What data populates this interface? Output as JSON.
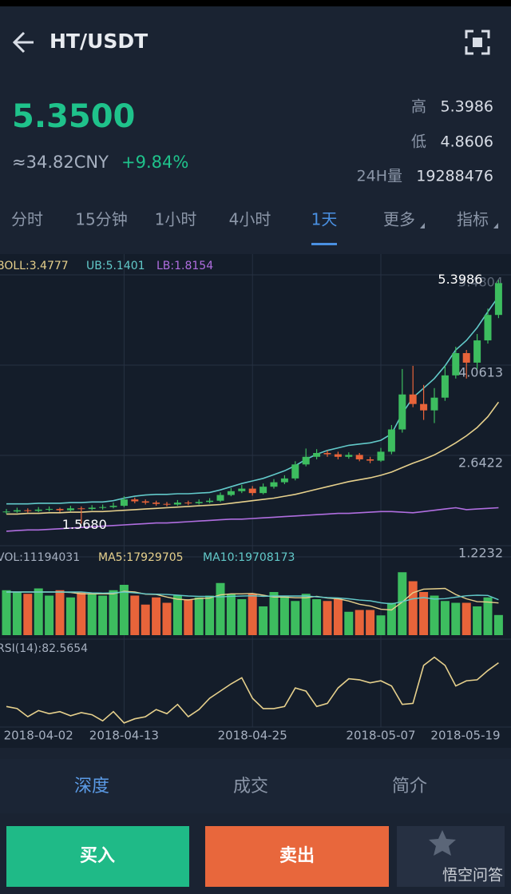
{
  "header": {
    "title": "HT/USDT",
    "price": "5.3500",
    "cny": "≈34.82CNY",
    "change": "+9.84%",
    "stats": [
      {
        "label": "高",
        "value": "5.3986"
      },
      {
        "label": "低",
        "value": "4.8606"
      },
      {
        "label": "24H量",
        "value": "19288476"
      }
    ]
  },
  "tabs": [
    "分时",
    "15分钟",
    "1小时",
    "4小时",
    "1天",
    "更多",
    "指标"
  ],
  "chart_data": {
    "type": "candlestick",
    "categories": [
      null,
      null,
      null,
      "2018-04-02",
      null,
      null,
      null,
      null,
      null,
      null,
      null,
      "2018-04-13",
      null,
      null,
      null,
      null,
      null,
      null,
      null,
      null,
      null,
      null,
      null,
      "2018-04-25",
      null,
      null,
      null,
      null,
      null,
      null,
      null,
      null,
      null,
      null,
      null,
      "2018-05-07",
      null,
      null,
      null,
      null,
      null,
      null,
      null,
      null,
      "2018-05-19",
      null,
      null
    ],
    "open": [
      1.75,
      1.76,
      1.78,
      1.77,
      1.79,
      1.8,
      1.78,
      1.81,
      1.8,
      1.82,
      1.83,
      1.85,
      1.95,
      1.92,
      1.9,
      1.88,
      1.87,
      1.9,
      1.89,
      1.91,
      1.93,
      2.02,
      2.08,
      2.12,
      2.05,
      2.15,
      2.22,
      2.28,
      2.5,
      2.62,
      2.68,
      2.66,
      2.62,
      2.65,
      2.58,
      2.56,
      2.7,
      3.05,
      3.6,
      3.45,
      3.35,
      3.55,
      3.9,
      4.25,
      4.1,
      4.45,
      4.85
    ],
    "high": [
      1.8,
      1.82,
      1.81,
      1.83,
      1.84,
      1.82,
      1.85,
      1.84,
      1.86,
      1.87,
      1.9,
      2.0,
      1.98,
      1.95,
      1.93,
      1.91,
      1.94,
      1.93,
      1.95,
      1.97,
      2.06,
      2.13,
      2.18,
      2.16,
      2.2,
      2.27,
      2.33,
      2.55,
      2.75,
      2.74,
      2.72,
      2.7,
      2.69,
      2.68,
      2.62,
      2.76,
      3.12,
      4.0,
      4.05,
      3.75,
      3.7,
      4.05,
      4.35,
      4.3,
      4.55,
      4.95,
      5.3986
    ],
    "low": [
      1.72,
      1.74,
      1.74,
      1.75,
      1.76,
      1.75,
      1.76,
      1.568,
      1.78,
      1.79,
      1.81,
      1.83,
      1.89,
      1.87,
      1.85,
      1.84,
      1.85,
      1.86,
      1.87,
      1.89,
      1.91,
      2.0,
      2.05,
      2.01,
      2.03,
      2.12,
      2.19,
      2.25,
      2.47,
      2.58,
      2.62,
      2.58,
      2.59,
      2.55,
      2.52,
      2.54,
      2.66,
      3.0,
      3.4,
      3.2,
      3.15,
      3.5,
      3.85,
      3.85,
      4.0,
      4.4,
      4.8
    ],
    "close": [
      1.76,
      1.78,
      1.77,
      1.79,
      1.8,
      1.78,
      1.81,
      1.8,
      1.82,
      1.83,
      1.85,
      1.95,
      1.92,
      1.9,
      1.88,
      1.87,
      1.9,
      1.89,
      1.91,
      1.93,
      2.02,
      2.08,
      2.12,
      2.05,
      2.15,
      2.22,
      2.28,
      2.5,
      2.62,
      2.68,
      2.66,
      2.62,
      2.65,
      2.58,
      2.56,
      2.7,
      3.05,
      3.6,
      3.45,
      3.35,
      3.55,
      3.9,
      4.25,
      4.1,
      4.45,
      4.85,
      5.35
    ],
    "up_color": "#3dbd5f",
    "down_color": "#e8643a",
    "ylim": [
      1.2232,
      5.4804
    ],
    "yticks": [
      1.2232,
      2.6422,
      4.0613,
      5.4804
    ],
    "grid": true,
    "high_label": "5.3986",
    "low_label": "1.5680",
    "boll": [
      {
        "name": "BOLL:3.4777",
        "color": "#e6d08c",
        "values": [
          1.72,
          1.72,
          1.73,
          1.73,
          1.74,
          1.74,
          1.75,
          1.75,
          1.76,
          1.76,
          1.77,
          1.78,
          1.79,
          1.8,
          1.81,
          1.82,
          1.83,
          1.84,
          1.85,
          1.86,
          1.87,
          1.89,
          1.91,
          1.93,
          1.95,
          1.97,
          2.0,
          2.03,
          2.07,
          2.11,
          2.15,
          2.19,
          2.23,
          2.26,
          2.29,
          2.33,
          2.38,
          2.45,
          2.52,
          2.58,
          2.65,
          2.74,
          2.84,
          2.95,
          3.08,
          3.25,
          3.48
        ]
      },
      {
        "name": "UB:5.1401",
        "color": "#62c9c9",
        "values": [
          1.88,
          1.88,
          1.88,
          1.89,
          1.89,
          1.89,
          1.9,
          1.9,
          1.91,
          1.91,
          1.93,
          1.97,
          2.0,
          2.02,
          2.03,
          2.03,
          2.04,
          2.04,
          2.05,
          2.06,
          2.1,
          2.15,
          2.2,
          2.24,
          2.28,
          2.34,
          2.4,
          2.48,
          2.58,
          2.66,
          2.72,
          2.76,
          2.8,
          2.82,
          2.84,
          2.88,
          2.98,
          3.3,
          3.55,
          3.7,
          3.85,
          4.05,
          4.3,
          4.45,
          4.65,
          4.9,
          5.14
        ]
      },
      {
        "name": "LB:1.8154",
        "color": "#b06ee0",
        "values": [
          1.45,
          1.46,
          1.47,
          1.47,
          1.48,
          1.49,
          1.5,
          1.51,
          1.52,
          1.53,
          1.54,
          1.55,
          1.56,
          1.57,
          1.58,
          1.58,
          1.59,
          1.6,
          1.61,
          1.62,
          1.63,
          1.64,
          1.64,
          1.65,
          1.66,
          1.67,
          1.68,
          1.69,
          1.7,
          1.71,
          1.72,
          1.73,
          1.73,
          1.74,
          1.75,
          1.76,
          1.76,
          1.75,
          1.74,
          1.76,
          1.78,
          1.8,
          1.82,
          1.79,
          1.8,
          1.81,
          1.82
        ]
      }
    ],
    "volume": {
      "name": "VOL:11194031",
      "ylim": [
        0,
        40000000
      ],
      "values": [
        25000000,
        24000000,
        23000000,
        26000000,
        22000000,
        25000000,
        21000000,
        24000000,
        23000000,
        22000000,
        25000000,
        28000000,
        22000000,
        17000000,
        21000000,
        18000000,
        22000000,
        20000000,
        21000000,
        22000000,
        29000000,
        23000000,
        20000000,
        23000000,
        16000000,
        24000000,
        22000000,
        19000000,
        23000000,
        20000000,
        19000000,
        20000000,
        13000000,
        14000000,
        14000000,
        11000000,
        18000000,
        35000000,
        30000000,
        24000000,
        22000000,
        19000000,
        18000000,
        18000000,
        16000000,
        21000000,
        11194031
      ],
      "series": [
        {
          "name": "MA5:17929705",
          "color": "#e6d08c",
          "values": [
            24000000,
            24000000,
            24000000,
            24000000,
            24000000,
            24000000,
            23800000,
            23000000,
            23000000,
            23000000,
            23000000,
            24400000,
            24000000,
            22800000,
            22600000,
            21200000,
            20000000,
            19600000,
            20400000,
            20600000,
            22400000,
            23000000,
            23000000,
            23200000,
            22200000,
            21200000,
            21200000,
            20800000,
            20800000,
            21600000,
            20600000,
            20200000,
            19000000,
            17200000,
            16200000,
            14400000,
            14000000,
            18400000,
            23600000,
            25600000,
            25800000,
            26000000,
            22600000,
            20200000,
            18600000,
            18400000,
            17929705
          ]
        },
        {
          "name": "MA10:19708173",
          "color": "#62c9c9",
          "values": [
            24000000,
            24000000,
            24000000,
            24000000,
            24000000,
            24000000,
            24000000,
            24000000,
            23500000,
            23400000,
            23500000,
            24000000,
            23500000,
            23000000,
            22800000,
            22600000,
            22200000,
            21800000,
            21600000,
            21500000,
            21300000,
            21600000,
            21800000,
            21900000,
            21600000,
            21800000,
            21800000,
            21800000,
            21800000,
            21300000,
            20900000,
            20700000,
            20200000,
            19500000,
            19100000,
            18000000,
            17400000,
            18600000,
            20200000,
            20900000,
            20100000,
            20300000,
            21100000,
            21900000,
            22200000,
            22100000,
            19708173
          ]
        }
      ]
    },
    "rsi": {
      "name": "RSI(14):82.5654",
      "color": "#e6d08c",
      "ylim": [
        20,
        90
      ],
      "values": [
        40,
        38,
        30,
        36,
        33,
        35,
        31,
        34,
        32,
        26,
        35,
        24,
        28,
        30,
        37,
        33,
        42,
        30,
        37,
        48,
        55,
        62,
        68,
        48,
        38,
        38,
        40,
        58,
        55,
        40,
        43,
        58,
        67,
        66,
        63,
        65,
        60,
        42,
        43,
        80,
        88,
        80,
        60,
        65,
        66,
        75,
        82.5654
      ]
    }
  },
  "bottom_tabs": [
    "深度",
    "成交",
    "简介"
  ],
  "buttons": {
    "buy": "买入",
    "sell": "卖出"
  },
  "watermark": "悟空问答"
}
